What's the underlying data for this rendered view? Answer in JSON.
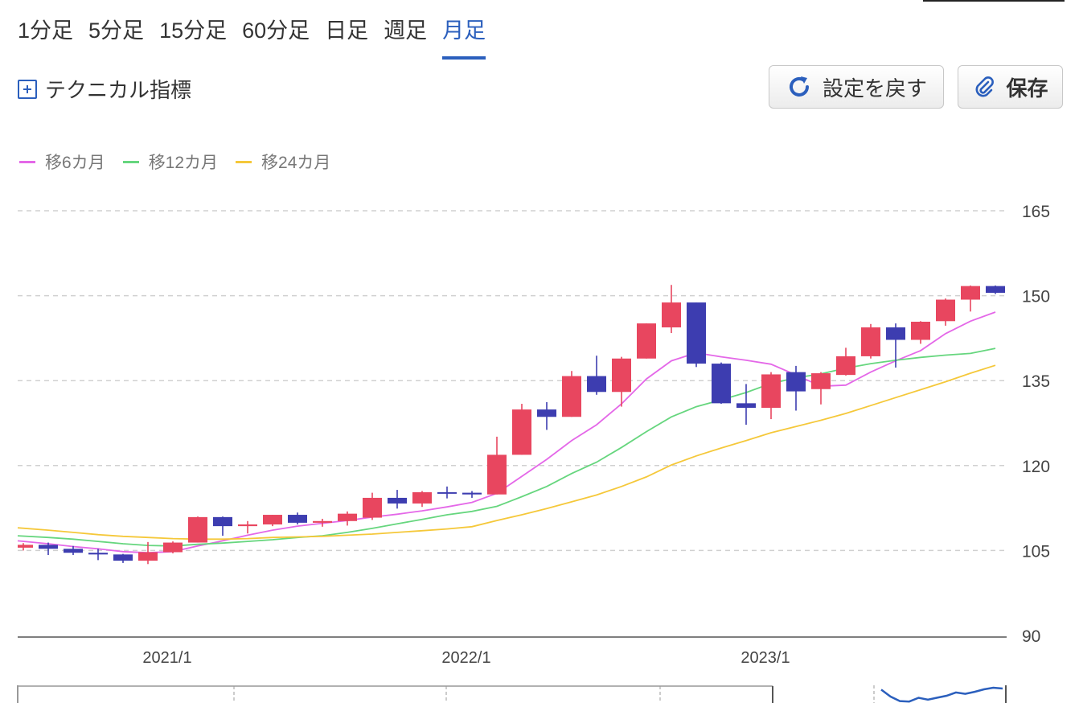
{
  "tabs": [
    {
      "label": "1分足",
      "active": false
    },
    {
      "label": "5分足",
      "active": false
    },
    {
      "label": "15分足",
      "active": false
    },
    {
      "label": "60分足",
      "active": false
    },
    {
      "label": "日足",
      "active": false
    },
    {
      "label": "週足",
      "active": false
    },
    {
      "label": "月足",
      "active": true
    }
  ],
  "toolbar": {
    "technical_label": "テクニカル指標",
    "reset_label": "設定を戻す",
    "save_label": "保存"
  },
  "colors": {
    "up": "#e8465f",
    "down": "#3d3db0",
    "accent": "#2b5fbd",
    "ma6": "#e468e8",
    "ma12": "#66d67e",
    "ma24": "#f5c83a"
  },
  "chart_data": {
    "type": "candlestick",
    "ylim": [
      90,
      165
    ],
    "yticks": [
      165,
      150,
      135,
      120,
      105,
      90
    ],
    "xtick_labels": [
      {
        "label": "2021/1",
        "index": 5
      },
      {
        "label": "2022/1",
        "index": 17
      },
      {
        "label": "2023/1",
        "index": 29
      }
    ],
    "grid": true,
    "legend_position": "top-left",
    "legend": [
      {
        "name": "移6カ月",
        "color": "#e468e8"
      },
      {
        "name": "移12カ月",
        "color": "#66d67e"
      },
      {
        "name": "移24カ月",
        "color": "#f5c83a"
      }
    ],
    "candles": [
      {
        "o": 105.5,
        "h": 106.3,
        "l": 105.0,
        "c": 106.0
      },
      {
        "o": 106.0,
        "h": 106.4,
        "l": 104.2,
        "c": 105.3
      },
      {
        "o": 105.3,
        "h": 105.8,
        "l": 104.2,
        "c": 104.6
      },
      {
        "o": 104.6,
        "h": 105.3,
        "l": 103.3,
        "c": 104.3
      },
      {
        "o": 104.3,
        "h": 104.4,
        "l": 102.8,
        "c": 103.2
      },
      {
        "o": 103.2,
        "h": 106.5,
        "l": 102.6,
        "c": 104.7
      },
      {
        "o": 104.7,
        "h": 106.6,
        "l": 104.5,
        "c": 106.4
      },
      {
        "o": 106.4,
        "h": 111.0,
        "l": 106.4,
        "c": 110.9
      },
      {
        "o": 110.9,
        "h": 111.0,
        "l": 107.6,
        "c": 109.3
      },
      {
        "o": 109.3,
        "h": 110.2,
        "l": 108.0,
        "c": 109.6
      },
      {
        "o": 109.6,
        "h": 111.3,
        "l": 109.3,
        "c": 111.3
      },
      {
        "o": 111.3,
        "h": 111.7,
        "l": 109.6,
        "c": 109.9
      },
      {
        "o": 109.9,
        "h": 110.6,
        "l": 109.2,
        "c": 110.2
      },
      {
        "o": 110.2,
        "h": 111.9,
        "l": 109.4,
        "c": 111.5
      },
      {
        "o": 110.8,
        "h": 115.2,
        "l": 110.4,
        "c": 114.3
      },
      {
        "o": 114.3,
        "h": 115.7,
        "l": 112.4,
        "c": 113.3
      },
      {
        "o": 113.3,
        "h": 115.5,
        "l": 112.7,
        "c": 115.3
      },
      {
        "o": 115.3,
        "h": 116.3,
        "l": 114.2,
        "c": 115.2
      },
      {
        "o": 115.2,
        "h": 115.5,
        "l": 114.3,
        "c": 114.9
      },
      {
        "o": 114.9,
        "h": 125.1,
        "l": 114.9,
        "c": 121.9
      },
      {
        "o": 121.9,
        "h": 130.9,
        "l": 121.9,
        "c": 129.9
      },
      {
        "o": 129.9,
        "h": 131.2,
        "l": 126.3,
        "c": 128.6
      },
      {
        "o": 128.6,
        "h": 136.7,
        "l": 128.6,
        "c": 135.8
      },
      {
        "o": 135.8,
        "h": 139.4,
        "l": 132.5,
        "c": 133.0
      },
      {
        "o": 133.0,
        "h": 139.2,
        "l": 130.4,
        "c": 138.9
      },
      {
        "o": 138.9,
        "h": 145.1,
        "l": 138.9,
        "c": 145.1
      },
      {
        "o": 144.4,
        "h": 151.9,
        "l": 143.4,
        "c": 148.8
      },
      {
        "o": 148.8,
        "h": 148.8,
        "l": 137.4,
        "c": 138.0
      },
      {
        "o": 138.0,
        "h": 138.2,
        "l": 130.9,
        "c": 131.0
      },
      {
        "o": 131.0,
        "h": 134.4,
        "l": 127.2,
        "c": 130.2
      },
      {
        "o": 130.2,
        "h": 136.5,
        "l": 128.2,
        "c": 136.1
      },
      {
        "o": 136.5,
        "h": 137.6,
        "l": 129.7,
        "c": 133.1
      },
      {
        "o": 133.5,
        "h": 136.5,
        "l": 130.8,
        "c": 136.3
      },
      {
        "o": 136.0,
        "h": 140.8,
        "l": 135.9,
        "c": 139.3
      },
      {
        "o": 139.3,
        "h": 145.0,
        "l": 138.9,
        "c": 144.4
      },
      {
        "o": 144.4,
        "h": 145.1,
        "l": 137.3,
        "c": 142.2
      },
      {
        "o": 142.2,
        "h": 145.5,
        "l": 141.5,
        "c": 145.4
      },
      {
        "o": 145.5,
        "h": 149.5,
        "l": 144.7,
        "c": 149.3
      },
      {
        "o": 149.3,
        "h": 151.8,
        "l": 147.2,
        "c": 151.7
      },
      {
        "o": 151.7,
        "h": 151.8,
        "l": 150.3,
        "c": 150.5
      }
    ],
    "series": [
      {
        "name": "移6カ月",
        "values": [
          106.7,
          106.2,
          105.7,
          105.3,
          104.8,
          104.6,
          104.8,
          105.8,
          106.7,
          107.7,
          108.6,
          109.3,
          109.8,
          110.3,
          110.9,
          111.4,
          112.0,
          112.7,
          113.5,
          115.1,
          118.1,
          121.1,
          124.4,
          127.2,
          130.9,
          135.3,
          138.5,
          139.9,
          139.2,
          138.6,
          137.9,
          136.0,
          134.0,
          134.2,
          136.5,
          138.5,
          140.3,
          143.3,
          145.5,
          147.1
        ]
      },
      {
        "name": "移12カ月",
        "values": [
          107.6,
          107.3,
          107.0,
          106.6,
          106.2,
          105.9,
          105.8,
          106.1,
          106.3,
          106.6,
          106.9,
          107.3,
          107.6,
          108.2,
          108.9,
          109.7,
          110.5,
          111.3,
          111.9,
          112.8,
          114.5,
          116.3,
          118.6,
          120.6,
          123.2,
          126.0,
          128.6,
          130.4,
          131.6,
          132.9,
          134.5,
          135.5,
          136.2,
          137.2,
          138.0,
          138.6,
          139.1,
          139.5,
          139.8,
          140.7
        ]
      },
      {
        "name": "移24カ月",
        "values": [
          109.0,
          108.6,
          108.2,
          107.8,
          107.5,
          107.3,
          107.1,
          107.0,
          107.0,
          107.1,
          107.3,
          107.4,
          107.5,
          107.7,
          107.9,
          108.2,
          108.5,
          108.8,
          109.2,
          110.3,
          111.3,
          112.4,
          113.6,
          114.8,
          116.3,
          118.0,
          120.1,
          121.7,
          123.1,
          124.4,
          125.8,
          126.9,
          128.0,
          129.2,
          130.6,
          132.0,
          133.4,
          134.8,
          136.3,
          137.7
        ]
      }
    ]
  }
}
